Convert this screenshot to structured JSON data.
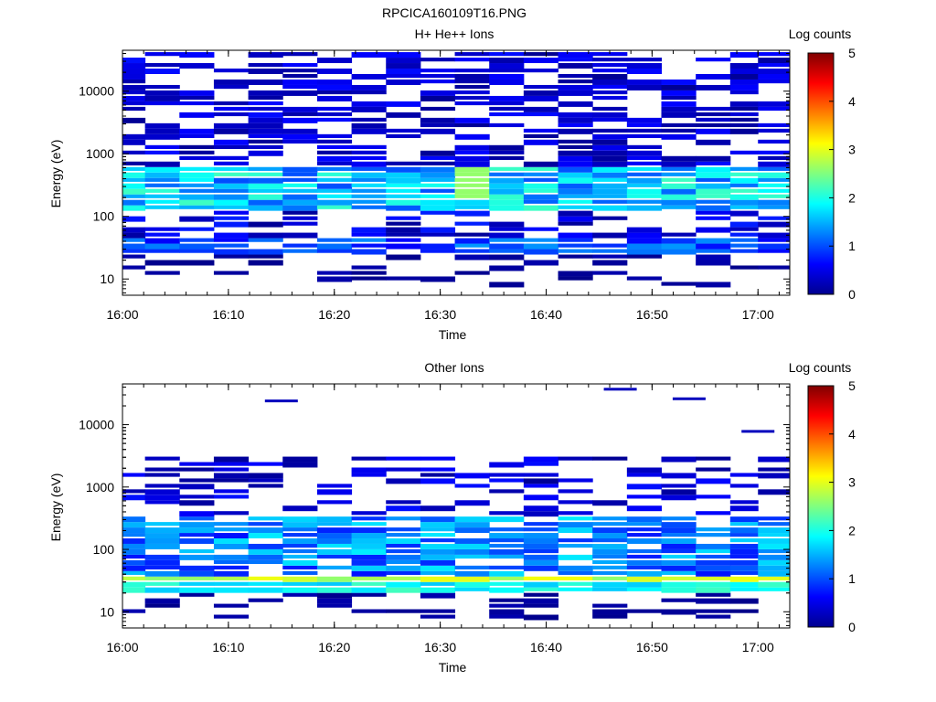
{
  "figure": {
    "title": "RPCICA160109T16.PNG",
    "background": "#ffffff"
  },
  "chart_data": [
    {
      "type": "heatmap",
      "title": "H+ He++ Ions",
      "xlabel": "Time",
      "ylabel": "Energy (eV)",
      "yscale": "log",
      "ylim": [
        5.5,
        45000
      ],
      "xlim": [
        "16:00",
        "17:03"
      ],
      "x_ticks": [
        "16:00",
        "16:10",
        "16:20",
        "16:30",
        "16:40",
        "16:50",
        "17:00"
      ],
      "y_ticks": [
        "10",
        "100",
        "1000",
        "10000"
      ],
      "y_tick_values": [
        10,
        100,
        1000,
        10000
      ],
      "colorbar": {
        "label": "Log counts",
        "min": 0,
        "max": 5,
        "ticks": [
          "0",
          "1",
          "2",
          "3",
          "4",
          "5"
        ]
      },
      "time_bins": [
        "16:00:30",
        "16:03:45",
        "16:07:00",
        "16:10:15",
        "16:13:30",
        "16:16:45",
        "16:20:00",
        "16:23:15",
        "16:26:30",
        "16:29:45",
        "16:33:00",
        "16:36:15",
        "16:39:30",
        "16:42:45",
        "16:46:00",
        "16:49:15",
        "16:52:30",
        "16:55:45",
        "16:59:00",
        "17:01:00"
      ],
      "profile": {
        "main_band_eV": [
          120,
          650
        ],
        "main_band_log_counts": [
          1.0,
          2.2
        ],
        "low_band_eV": [
          25,
          45
        ],
        "low_band_log_counts": [
          0.6,
          1.4
        ],
        "high_energy_eV": [
          1000,
          40000
        ],
        "high_energy_log_counts": [
          0.1,
          0.7
        ],
        "peak": {
          "time": "16:34:00",
          "eV": [
            200,
            600
          ],
          "log_counts": 2.6
        }
      },
      "grid": false,
      "legend": "colorbar-right"
    },
    {
      "type": "heatmap",
      "title": "Other Ions",
      "xlabel": "Time",
      "ylabel": "Energy (eV)",
      "yscale": "log",
      "ylim": [
        5.5,
        45000
      ],
      "xlim": [
        "16:00",
        "17:03"
      ],
      "x_ticks": [
        "16:00",
        "16:10",
        "16:20",
        "16:30",
        "16:40",
        "16:50",
        "17:00"
      ],
      "y_ticks": [
        "10",
        "100",
        "1000",
        "10000"
      ],
      "y_tick_values": [
        10,
        100,
        1000,
        10000
      ],
      "colorbar": {
        "label": "Log counts",
        "min": 0,
        "max": 5,
        "ticks": [
          "0",
          "1",
          "2",
          "3",
          "4",
          "5"
        ]
      },
      "time_bins": [
        "16:00:30",
        "16:03:45",
        "16:07:00",
        "16:10:15",
        "16:13:30",
        "16:16:45",
        "16:20:00",
        "16:23:15",
        "16:26:30",
        "16:29:45",
        "16:33:00",
        "16:36:15",
        "16:39:30",
        "16:42:45",
        "16:46:00",
        "16:49:15",
        "16:52:30",
        "16:55:45",
        "16:59:00",
        "17:01:00"
      ],
      "profile": {
        "main_band_eV": [
          28,
          40
        ],
        "main_band_log_counts": [
          2.5,
          3.1
        ],
        "mid_band_eV": [
          40,
          350
        ],
        "mid_band_log_counts": [
          0.7,
          1.8
        ],
        "high_energy_eV": [
          500,
          3000
        ],
        "high_energy_log_counts": [
          0.1,
          1.8
        ],
        "isolated": [
          {
            "time": "16:15:00",
            "eV": 24000,
            "log_counts": 0.3
          },
          {
            "time": "16:47:00",
            "eV": 37000,
            "log_counts": 0.3
          },
          {
            "time": "16:53:30",
            "eV": 26000,
            "log_counts": 0.3
          },
          {
            "time": "17:00:00",
            "eV": 7800,
            "log_counts": 0.3
          }
        ]
      },
      "grid": false,
      "legend": "colorbar-right"
    }
  ]
}
